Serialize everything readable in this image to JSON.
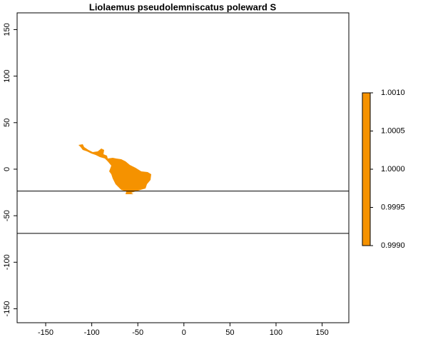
{
  "chart_data": {
    "type": "raster",
    "title": "Liolaemus pseudolemniscatus poleward S",
    "xlim": [
      -181,
      179
    ],
    "ylim": [
      -165,
      168
    ],
    "xticks": [
      -150,
      -100,
      -50,
      0,
      50,
      100,
      150
    ],
    "yticks": [
      -150,
      -100,
      -50,
      0,
      50,
      100,
      150
    ],
    "hlines": [
      -23.5,
      -69
    ],
    "color": "#f59200",
    "colorbar": {
      "zlim": [
        0.999,
        1.001
      ],
      "ticks": [
        {
          "value": 0.999,
          "label": "0.9990"
        },
        {
          "value": 0.9995,
          "label": "0.9995"
        },
        {
          "value": 1.0,
          "label": "1.0000"
        },
        {
          "value": 1.0005,
          "label": "1.0005"
        },
        {
          "value": 1.001,
          "label": "1.0010"
        }
      ]
    }
  }
}
